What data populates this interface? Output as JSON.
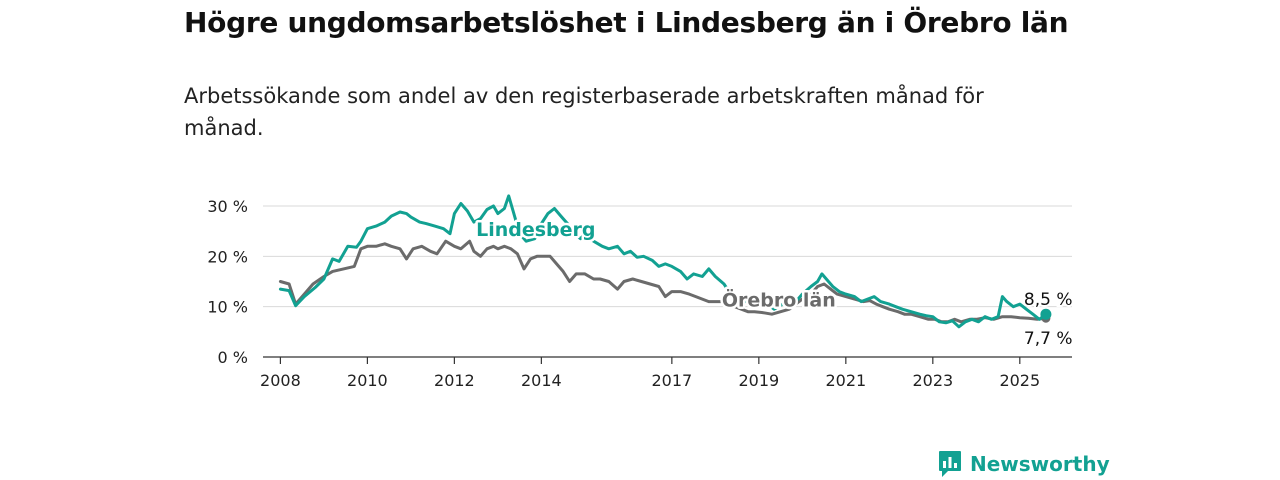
{
  "title": "Högre ungdomsarbetslöshet i Lindesberg än i Örebro län",
  "subtitle": "Arbetssökande som andel av den registerbaserade arbetskraften månad för månad.",
  "brand": {
    "name": "Newsworthy",
    "icon": "newsworthy-chart-bubble-icon",
    "color": "#12a192"
  },
  "chart_data": {
    "type": "line",
    "title": "Högre ungdomsarbetslöshet i Lindesberg än i Örebro län",
    "subtitle": "Arbetssökande som andel av den registerbaserade arbetskraften månad för månad.",
    "xlabel": "",
    "ylabel": "",
    "xlim": [
      2007.6,
      2026.2
    ],
    "ylim": [
      0,
      30
    ],
    "x_ticks": [
      2008,
      2010,
      2012,
      2014,
      2017,
      2019,
      2021,
      2023,
      2025
    ],
    "y_ticks": [
      0,
      10,
      20,
      30
    ],
    "y_tick_labels": [
      "0 %",
      "10 %",
      "20 %",
      "30 %"
    ],
    "grid": true,
    "legend": "direct labels on lines",
    "series": [
      {
        "name": "Lindesberg",
        "color": "#12a192",
        "end_label": "8,5 %",
        "points": [
          [
            2008.0,
            13.5
          ],
          [
            2008.2,
            13.2
          ],
          [
            2008.35,
            10.2
          ],
          [
            2008.55,
            12.0
          ],
          [
            2008.8,
            13.8
          ],
          [
            2009.0,
            15.5
          ],
          [
            2009.2,
            19.5
          ],
          [
            2009.35,
            19.0
          ],
          [
            2009.55,
            22.0
          ],
          [
            2009.75,
            21.8
          ],
          [
            2009.85,
            23.0
          ],
          [
            2010.0,
            25.5
          ],
          [
            2010.2,
            26.0
          ],
          [
            2010.4,
            26.8
          ],
          [
            2010.55,
            28.0
          ],
          [
            2010.75,
            28.8
          ],
          [
            2010.9,
            28.5
          ],
          [
            2011.0,
            27.8
          ],
          [
            2011.2,
            26.8
          ],
          [
            2011.35,
            26.5
          ],
          [
            2011.55,
            26.0
          ],
          [
            2011.75,
            25.5
          ],
          [
            2011.9,
            24.5
          ],
          [
            2012.0,
            28.5
          ],
          [
            2012.15,
            30.5
          ],
          [
            2012.3,
            29.0
          ],
          [
            2012.45,
            26.8
          ],
          [
            2012.6,
            27.5
          ],
          [
            2012.75,
            29.3
          ],
          [
            2012.9,
            30.0
          ],
          [
            2013.0,
            28.5
          ],
          [
            2013.15,
            29.5
          ],
          [
            2013.25,
            32.0
          ],
          [
            2013.35,
            29.0
          ],
          [
            2013.5,
            24.5
          ],
          [
            2013.65,
            23.0
          ],
          [
            2013.85,
            23.5
          ],
          [
            2014.0,
            26.5
          ],
          [
            2014.15,
            28.5
          ],
          [
            2014.3,
            29.5
          ],
          [
            2014.45,
            28.0
          ],
          [
            2014.6,
            26.5
          ],
          [
            2014.75,
            24.5
          ],
          [
            2014.9,
            23.5
          ],
          [
            2015.0,
            24.5
          ],
          [
            2015.2,
            23.0
          ],
          [
            2015.4,
            22.0
          ],
          [
            2015.55,
            21.5
          ],
          [
            2015.75,
            22.0
          ],
          [
            2015.9,
            20.5
          ],
          [
            2016.05,
            21.0
          ],
          [
            2016.2,
            19.8
          ],
          [
            2016.35,
            20.0
          ],
          [
            2016.55,
            19.2
          ],
          [
            2016.7,
            18.0
          ],
          [
            2016.85,
            18.5
          ],
          [
            2017.0,
            18.0
          ],
          [
            2017.2,
            17.0
          ],
          [
            2017.35,
            15.5
          ],
          [
            2017.5,
            16.5
          ],
          [
            2017.7,
            16.0
          ],
          [
            2017.85,
            17.5
          ],
          [
            2018.0,
            16.0
          ],
          [
            2018.2,
            14.5
          ],
          [
            2018.35,
            12.5
          ],
          [
            2018.5,
            11.5
          ],
          [
            2018.7,
            11.0
          ],
          [
            2018.85,
            11.2
          ],
          [
            2019.0,
            10.8
          ],
          [
            2019.2,
            10.5
          ],
          [
            2019.35,
            9.5
          ],
          [
            2019.55,
            10.5
          ],
          [
            2019.75,
            11.0
          ],
          [
            2019.9,
            11.5
          ],
          [
            2020.0,
            12.5
          ],
          [
            2020.2,
            14.0
          ],
          [
            2020.35,
            15.0
          ],
          [
            2020.45,
            16.5
          ],
          [
            2020.55,
            15.5
          ],
          [
            2020.7,
            14.0
          ],
          [
            2020.85,
            13.0
          ],
          [
            2021.0,
            12.5
          ],
          [
            2021.2,
            12.0
          ],
          [
            2021.35,
            11.0
          ],
          [
            2021.5,
            11.5
          ],
          [
            2021.65,
            12.0
          ],
          [
            2021.8,
            11.0
          ],
          [
            2022.0,
            10.5
          ],
          [
            2022.15,
            10.0
          ],
          [
            2022.3,
            9.5
          ],
          [
            2022.5,
            9.0
          ],
          [
            2022.7,
            8.5
          ],
          [
            2022.85,
            8.2
          ],
          [
            2023.0,
            8.0
          ],
          [
            2023.15,
            7.0
          ],
          [
            2023.3,
            6.8
          ],
          [
            2023.45,
            7.2
          ],
          [
            2023.6,
            6.0
          ],
          [
            2023.75,
            7.0
          ],
          [
            2023.9,
            7.5
          ],
          [
            2024.05,
            7.0
          ],
          [
            2024.2,
            8.0
          ],
          [
            2024.35,
            7.5
          ],
          [
            2024.5,
            8.0
          ],
          [
            2024.6,
            12.0
          ],
          [
            2024.7,
            11.0
          ],
          [
            2024.85,
            10.0
          ],
          [
            2025.0,
            10.5
          ],
          [
            2025.15,
            9.5
          ],
          [
            2025.3,
            8.5
          ],
          [
            2025.45,
            7.5
          ],
          [
            2025.6,
            8.5
          ]
        ]
      },
      {
        "name": "Örebro län",
        "color": "#6b6b6b",
        "end_label": "7,7 %",
        "points": [
          [
            2008.0,
            15.0
          ],
          [
            2008.2,
            14.5
          ],
          [
            2008.35,
            10.5
          ],
          [
            2008.55,
            12.5
          ],
          [
            2008.75,
            14.5
          ],
          [
            2009.0,
            16.0
          ],
          [
            2009.2,
            17.0
          ],
          [
            2009.45,
            17.5
          ],
          [
            2009.7,
            18.0
          ],
          [
            2009.85,
            21.5
          ],
          [
            2010.0,
            22.0
          ],
          [
            2010.2,
            22.0
          ],
          [
            2010.4,
            22.5
          ],
          [
            2010.55,
            22.0
          ],
          [
            2010.75,
            21.5
          ],
          [
            2010.9,
            19.5
          ],
          [
            2011.05,
            21.5
          ],
          [
            2011.25,
            22.0
          ],
          [
            2011.45,
            21.0
          ],
          [
            2011.6,
            20.5
          ],
          [
            2011.8,
            23.0
          ],
          [
            2012.0,
            22.0
          ],
          [
            2012.15,
            21.5
          ],
          [
            2012.35,
            23.0
          ],
          [
            2012.45,
            21.0
          ],
          [
            2012.6,
            20.0
          ],
          [
            2012.75,
            21.5
          ],
          [
            2012.9,
            22.0
          ],
          [
            2013.0,
            21.5
          ],
          [
            2013.15,
            22.0
          ],
          [
            2013.3,
            21.5
          ],
          [
            2013.45,
            20.5
          ],
          [
            2013.6,
            17.5
          ],
          [
            2013.75,
            19.5
          ],
          [
            2013.9,
            20.0
          ],
          [
            2014.05,
            20.0
          ],
          [
            2014.2,
            20.0
          ],
          [
            2014.35,
            18.5
          ],
          [
            2014.5,
            17.0
          ],
          [
            2014.65,
            15.0
          ],
          [
            2014.8,
            16.5
          ],
          [
            2015.0,
            16.5
          ],
          [
            2015.2,
            15.5
          ],
          [
            2015.35,
            15.5
          ],
          [
            2015.55,
            15.0
          ],
          [
            2015.75,
            13.5
          ],
          [
            2015.9,
            15.0
          ],
          [
            2016.1,
            15.5
          ],
          [
            2016.3,
            15.0
          ],
          [
            2016.5,
            14.5
          ],
          [
            2016.7,
            14.0
          ],
          [
            2016.85,
            12.0
          ],
          [
            2017.0,
            13.0
          ],
          [
            2017.2,
            13.0
          ],
          [
            2017.4,
            12.5
          ],
          [
            2017.55,
            12.0
          ],
          [
            2017.7,
            11.5
          ],
          [
            2017.85,
            11.0
          ],
          [
            2018.0,
            11.0
          ],
          [
            2018.15,
            11.0
          ],
          [
            2018.3,
            10.5
          ],
          [
            2018.45,
            10.0
          ],
          [
            2018.6,
            9.5
          ],
          [
            2018.75,
            9.0
          ],
          [
            2018.9,
            9.0
          ],
          [
            2019.1,
            8.8
          ],
          [
            2019.3,
            8.5
          ],
          [
            2019.5,
            9.0
          ],
          [
            2019.7,
            9.5
          ],
          [
            2019.85,
            10.5
          ],
          [
            2020.0,
            11.5
          ],
          [
            2020.2,
            12.5
          ],
          [
            2020.35,
            14.0
          ],
          [
            2020.5,
            14.5
          ],
          [
            2020.65,
            13.5
          ],
          [
            2020.8,
            12.5
          ],
          [
            2021.0,
            12.0
          ],
          [
            2021.2,
            11.5
          ],
          [
            2021.4,
            11.0
          ],
          [
            2021.55,
            11.2
          ],
          [
            2021.7,
            10.5
          ],
          [
            2021.85,
            10.0
          ],
          [
            2022.0,
            9.5
          ],
          [
            2022.2,
            9.0
          ],
          [
            2022.35,
            8.5
          ],
          [
            2022.5,
            8.5
          ],
          [
            2022.7,
            8.0
          ],
          [
            2022.9,
            7.5
          ],
          [
            2023.05,
            7.5
          ],
          [
            2023.2,
            7.0
          ],
          [
            2023.35,
            7.0
          ],
          [
            2023.5,
            7.5
          ],
          [
            2023.65,
            7.0
          ],
          [
            2023.85,
            7.5
          ],
          [
            2024.0,
            7.5
          ],
          [
            2024.2,
            7.8
          ],
          [
            2024.4,
            7.5
          ],
          [
            2024.6,
            8.0
          ],
          [
            2024.8,
            8.0
          ],
          [
            2025.0,
            7.8
          ],
          [
            2025.2,
            7.7
          ],
          [
            2025.4,
            7.5
          ],
          [
            2025.6,
            7.7
          ]
        ]
      }
    ],
    "direct_labels": [
      {
        "series": 0,
        "text": "Lindesberg",
        "x": 2012.5,
        "y": 24.0
      },
      {
        "series": 1,
        "text": "Örebro län",
        "x": 2018.15,
        "y": 10.0
      }
    ]
  }
}
